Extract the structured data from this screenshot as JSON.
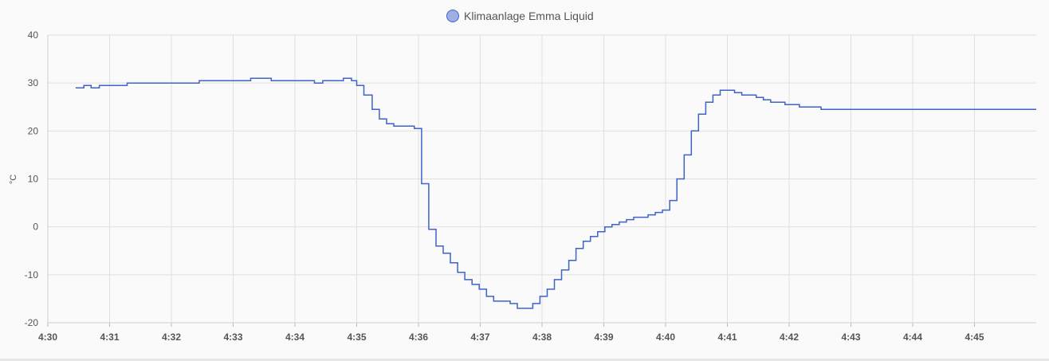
{
  "chart_data": {
    "type": "line",
    "step": true,
    "legend_position": "top-center",
    "grid": true,
    "ylabel": "°C",
    "ylim": [
      -20,
      40
    ],
    "yticks": [
      40,
      30,
      20,
      10,
      0,
      -10,
      -20
    ],
    "xlim_minutes": [
      0,
      16
    ],
    "xtick_labels": [
      "4:30",
      "4:31",
      "4:32",
      "4:33",
      "4:34",
      "4:35",
      "4:36",
      "4:37",
      "4:38",
      "4:39",
      "4:40",
      "4:41",
      "4:42",
      "4:43",
      "4:44",
      "4:45"
    ],
    "series": [
      {
        "name": "Klimaanlage Emma Liquid",
        "color": "#3f63c8",
        "legend_fill": "#9eb0e3",
        "points": [
          [
            "4:30:27",
            29
          ],
          [
            "4:30:35",
            29.5
          ],
          [
            "4:30:42",
            29
          ],
          [
            "4:30:50",
            29.5
          ],
          [
            "4:31:17",
            30
          ],
          [
            "4:32:27",
            30.5
          ],
          [
            "4:33:17",
            31
          ],
          [
            "4:33:37",
            30.5
          ],
          [
            "4:34:19",
            30
          ],
          [
            "4:34:27",
            30.5
          ],
          [
            "4:34:47",
            31
          ],
          [
            "4:34:55",
            30.5
          ],
          [
            "4:35:00",
            29.5
          ],
          [
            "4:35:07",
            27.5
          ],
          [
            "4:35:15",
            24.5
          ],
          [
            "4:35:22",
            22.5
          ],
          [
            "4:35:29",
            21.5
          ],
          [
            "4:35:36",
            21
          ],
          [
            "4:35:56",
            20.5
          ],
          [
            "4:36:03",
            9
          ],
          [
            "4:36:10",
            -0.5
          ],
          [
            "4:36:17",
            -4
          ],
          [
            "4:36:24",
            -5.5
          ],
          [
            "4:36:31",
            -7.5
          ],
          [
            "4:36:38",
            -9.5
          ],
          [
            "4:36:45",
            -11
          ],
          [
            "4:36:52",
            -12
          ],
          [
            "4:36:59",
            -13
          ],
          [
            "4:37:06",
            -14.5
          ],
          [
            "4:37:13",
            -15.5
          ],
          [
            "4:37:29",
            -16
          ],
          [
            "4:37:36",
            -17
          ],
          [
            "4:37:51",
            -16
          ],
          [
            "4:37:58",
            -14.5
          ],
          [
            "4:38:05",
            -13
          ],
          [
            "4:38:12",
            -11
          ],
          [
            "4:38:19",
            -9
          ],
          [
            "4:38:26",
            -7
          ],
          [
            "4:38:33",
            -4.5
          ],
          [
            "4:38:40",
            -3
          ],
          [
            "4:38:47",
            -2
          ],
          [
            "4:38:54",
            -1
          ],
          [
            "4:39:01",
            0
          ],
          [
            "4:39:08",
            0.5
          ],
          [
            "4:39:15",
            1
          ],
          [
            "4:39:22",
            1.5
          ],
          [
            "4:39:29",
            2
          ],
          [
            "4:39:43",
            2.5
          ],
          [
            "4:39:50",
            3
          ],
          [
            "4:39:57",
            3.5
          ],
          [
            "4:40:04",
            5.5
          ],
          [
            "4:40:11",
            10
          ],
          [
            "4:40:18",
            15
          ],
          [
            "4:40:25",
            20
          ],
          [
            "4:40:32",
            23.5
          ],
          [
            "4:40:39",
            26
          ],
          [
            "4:40:46",
            27.5
          ],
          [
            "4:40:53",
            28.5
          ],
          [
            "4:41:07",
            28
          ],
          [
            "4:41:14",
            27.5
          ],
          [
            "4:41:28",
            27
          ],
          [
            "4:41:35",
            26.5
          ],
          [
            "4:41:42",
            26
          ],
          [
            "4:41:56",
            25.5
          ],
          [
            "4:42:10",
            25
          ],
          [
            "4:42:31",
            24.5
          ],
          [
            "4:46:00",
            24.5
          ]
        ]
      }
    ]
  }
}
